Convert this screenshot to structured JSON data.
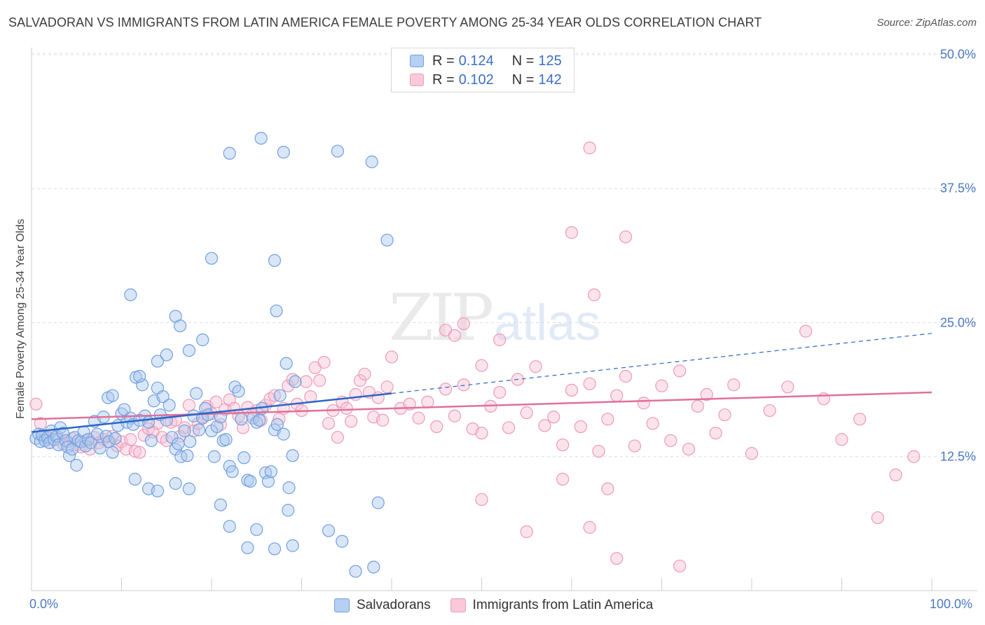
{
  "chart_data": {
    "type": "scatter",
    "title": "SALVADORAN VS IMMIGRANTS FROM LATIN AMERICA FEMALE POVERTY AMONG 25-34 YEAR OLDS CORRELATION CHART",
    "source": "Source: ZipAtlas.com",
    "xlabel": "",
    "ylabel": "Female Poverty Among 25-34 Year Olds",
    "xlim": [
      0,
      100
    ],
    "ylim": [
      0,
      50
    ],
    "x_tick_labels": [
      "0.0%",
      "100.0%"
    ],
    "y_ticks": [
      12.5,
      25.0,
      37.5,
      50.0
    ],
    "y_tick_labels": [
      "12.5%",
      "25.0%",
      "37.5%",
      "50.0%"
    ],
    "grid": true,
    "watermark": {
      "zip": "ZIP",
      "atlas": "atlas"
    },
    "legend_stats": [
      {
        "r_label": "R = ",
        "r_value": "0.124",
        "n_label": "N = ",
        "n_value": "125"
      },
      {
        "r_label": "R = ",
        "r_value": "0.102",
        "n_label": "N = ",
        "n_value": "142"
      }
    ],
    "series": [
      {
        "name": "Salvadorans",
        "color": "#6fa0e0",
        "fill": "#aac8ee",
        "trend_color": "#2a66c8",
        "trend": {
          "x": [
            0,
            40
          ],
          "y": [
            14.8,
            18.4
          ]
        },
        "trend_extension": {
          "x": [
            40,
            100
          ],
          "y": [
            18.4,
            24.0
          ]
        },
        "points": [
          [
            0.5,
            14.2
          ],
          [
            0.8,
            14.6
          ],
          [
            1.0,
            13.9
          ],
          [
            1.2,
            14.5
          ],
          [
            1.5,
            14.0
          ],
          [
            1.8,
            14.3
          ],
          [
            2.0,
            13.8
          ],
          [
            2.2,
            14.9
          ],
          [
            2.5,
            14.1
          ],
          [
            2.8,
            14.4
          ],
          [
            3.0,
            13.6
          ],
          [
            3.2,
            15.2
          ],
          [
            3.5,
            14.7
          ],
          [
            3.8,
            14.0
          ],
          [
            4.0,
            13.4
          ],
          [
            4.2,
            12.6
          ],
          [
            4.5,
            13.2
          ],
          [
            4.8,
            14.3
          ],
          [
            5.0,
            11.7
          ],
          [
            5.2,
            14.0
          ],
          [
            5.5,
            13.9
          ],
          [
            5.8,
            14.8
          ],
          [
            6.0,
            13.5
          ],
          [
            6.3,
            14.1
          ],
          [
            6.6,
            13.8
          ],
          [
            7.0,
            15.8
          ],
          [
            7.3,
            14.6
          ],
          [
            7.6,
            13.3
          ],
          [
            8.0,
            16.2
          ],
          [
            8.3,
            14.4
          ],
          [
            8.6,
            13.9
          ],
          [
            9.0,
            12.9
          ],
          [
            9.3,
            14.2
          ],
          [
            9.6,
            15.4
          ],
          [
            10.0,
            16.5
          ],
          [
            10.3,
            16.9
          ],
          [
            10.6,
            15.7
          ],
          [
            11.0,
            16.1
          ],
          [
            11.3,
            15.5
          ],
          [
            11.6,
            19.9
          ],
          [
            12.0,
            15.9
          ],
          [
            12.3,
            19.2
          ],
          [
            12.6,
            16.3
          ],
          [
            13.0,
            15.7
          ],
          [
            13.3,
            14.0
          ],
          [
            13.6,
            17.7
          ],
          [
            14.0,
            18.9
          ],
          [
            14.3,
            16.4
          ],
          [
            14.6,
            18.1
          ],
          [
            15.0,
            15.9
          ],
          [
            15.3,
            17.3
          ],
          [
            15.6,
            14.3
          ],
          [
            16.0,
            13.2
          ],
          [
            16.3,
            13.7
          ],
          [
            16.6,
            12.5
          ],
          [
            17.0,
            14.9
          ],
          [
            17.3,
            12.6
          ],
          [
            17.6,
            13.9
          ],
          [
            18.0,
            16.3
          ],
          [
            18.3,
            18.4
          ],
          [
            18.6,
            15.0
          ],
          [
            19.0,
            16.1
          ],
          [
            19.3,
            17.0
          ],
          [
            19.6,
            16.4
          ],
          [
            20.0,
            14.9
          ],
          [
            20.3,
            12.5
          ],
          [
            20.6,
            15.3
          ],
          [
            21.0,
            16.2
          ],
          [
            21.3,
            14.0
          ],
          [
            21.6,
            14.1
          ],
          [
            22.0,
            11.6
          ],
          [
            22.3,
            11.1
          ],
          [
            22.6,
            19.0
          ],
          [
            23.0,
            18.6
          ],
          [
            23.3,
            16.0
          ],
          [
            23.6,
            12.4
          ],
          [
            24.0,
            10.3
          ],
          [
            24.3,
            10.2
          ],
          [
            24.6,
            16.1
          ],
          [
            25.0,
            15.7
          ],
          [
            25.3,
            15.9
          ],
          [
            25.6,
            17.0
          ],
          [
            26.0,
            11.0
          ],
          [
            26.3,
            10.2
          ],
          [
            26.6,
            11.1
          ],
          [
            27.0,
            15.0
          ],
          [
            27.3,
            15.5
          ],
          [
            27.6,
            18.2
          ],
          [
            28.0,
            14.6
          ],
          [
            28.3,
            21.2
          ],
          [
            28.6,
            9.6
          ],
          [
            29.0,
            12.6
          ],
          [
            29.3,
            19.5
          ],
          [
            12.0,
            20.0
          ],
          [
            14.0,
            21.4
          ],
          [
            15.0,
            22.0
          ],
          [
            16.0,
            25.6
          ],
          [
            16.5,
            24.7
          ],
          [
            17.5,
            22.4
          ],
          [
            19.0,
            23.4
          ],
          [
            8.5,
            18.0
          ],
          [
            9.0,
            18.2
          ],
          [
            11.0,
            27.6
          ],
          [
            20.0,
            31.0
          ],
          [
            22.0,
            40.8
          ],
          [
            27.0,
            30.8
          ],
          [
            27.2,
            26.1
          ],
          [
            28.0,
            40.9
          ],
          [
            25.5,
            42.2
          ],
          [
            34.0,
            41.0
          ],
          [
            37.8,
            40.0
          ],
          [
            39.5,
            32.7
          ],
          [
            11.5,
            10.4
          ],
          [
            13.0,
            9.5
          ],
          [
            14.0,
            9.3
          ],
          [
            16.0,
            10.0
          ],
          [
            17.5,
            9.5
          ],
          [
            21.0,
            8.0
          ],
          [
            22.0,
            6.0
          ],
          [
            24.0,
            4.0
          ],
          [
            25.0,
            5.7
          ],
          [
            27.0,
            3.9
          ],
          [
            28.5,
            7.5
          ],
          [
            29.0,
            4.2
          ],
          [
            33.0,
            5.6
          ],
          [
            34.5,
            4.6
          ],
          [
            36.0,
            1.8
          ],
          [
            38.0,
            2.2
          ],
          [
            38.5,
            8.2
          ]
        ]
      },
      {
        "name": "Immigrants from Latin America",
        "color": "#ee9ab8",
        "fill": "#f7c2d4",
        "trend_color": "#e0709a",
        "trend": {
          "x": [
            0,
            100
          ],
          "y": [
            16.0,
            18.5
          ]
        },
        "points": [
          [
            0.5,
            17.4
          ],
          [
            1.0,
            15.6
          ],
          [
            1.5,
            14.3
          ],
          [
            2.0,
            13.8
          ],
          [
            2.5,
            14.5
          ],
          [
            3.0,
            14.1
          ],
          [
            3.5,
            13.7
          ],
          [
            4.0,
            13.9
          ],
          [
            4.5,
            14.2
          ],
          [
            5.0,
            13.6
          ],
          [
            5.5,
            13.4
          ],
          [
            6.0,
            14.0
          ],
          [
            6.5,
            13.2
          ],
          [
            7.0,
            14.3
          ],
          [
            7.5,
            13.8
          ],
          [
            8.0,
            14.1
          ],
          [
            8.5,
            13.9
          ],
          [
            9.0,
            14.4
          ],
          [
            9.5,
            13.5
          ],
          [
            10.0,
            13.9
          ],
          [
            10.5,
            13.2
          ],
          [
            11.0,
            14.1
          ],
          [
            11.5,
            13.0
          ],
          [
            12.0,
            12.9
          ],
          [
            12.5,
            14.5
          ],
          [
            13.0,
            15.1
          ],
          [
            13.5,
            14.8
          ],
          [
            14.0,
            15.6
          ],
          [
            14.5,
            14.3
          ],
          [
            15.0,
            14.0
          ],
          [
            15.5,
            15.7
          ],
          [
            16.0,
            15.9
          ],
          [
            16.5,
            14.4
          ],
          [
            17.0,
            15.2
          ],
          [
            17.5,
            17.3
          ],
          [
            18.0,
            14.9
          ],
          [
            18.5,
            15.6
          ],
          [
            19.0,
            16.2
          ],
          [
            19.5,
            17.2
          ],
          [
            20.0,
            16.5
          ],
          [
            20.5,
            17.6
          ],
          [
            21.0,
            15.5
          ],
          [
            21.5,
            16.9
          ],
          [
            22.0,
            17.8
          ],
          [
            22.5,
            17.0
          ],
          [
            23.0,
            16.3
          ],
          [
            23.5,
            15.2
          ],
          [
            24.0,
            17.1
          ],
          [
            24.5,
            16.4
          ],
          [
            25.0,
            16.8
          ],
          [
            25.5,
            15.9
          ],
          [
            26.0,
            17.3
          ],
          [
            26.5,
            17.9
          ],
          [
            27.0,
            18.2
          ],
          [
            27.5,
            16.0
          ],
          [
            28.0,
            17.0
          ],
          [
            28.5,
            19.1
          ],
          [
            29.0,
            19.7
          ],
          [
            29.5,
            17.4
          ],
          [
            30.0,
            16.8
          ],
          [
            30.5,
            19.5
          ],
          [
            31.0,
            18.1
          ],
          [
            31.5,
            20.8
          ],
          [
            32.0,
            19.6
          ],
          [
            32.5,
            21.3
          ],
          [
            33.0,
            15.6
          ],
          [
            33.5,
            16.8
          ],
          [
            34.0,
            14.3
          ],
          [
            34.5,
            17.6
          ],
          [
            35.0,
            17.0
          ],
          [
            35.5,
            15.8
          ],
          [
            36.0,
            18.3
          ],
          [
            36.5,
            19.6
          ],
          [
            37.0,
            20.2
          ],
          [
            37.5,
            18.5
          ],
          [
            38.0,
            16.2
          ],
          [
            38.5,
            18.0
          ],
          [
            39.0,
            15.9
          ],
          [
            39.5,
            19.0
          ],
          [
            40.0,
            21.8
          ],
          [
            41.0,
            17.0
          ],
          [
            42.0,
            17.4
          ],
          [
            43.0,
            16.1
          ],
          [
            44.0,
            17.6
          ],
          [
            45.0,
            15.3
          ],
          [
            46.0,
            18.8
          ],
          [
            47.0,
            16.3
          ],
          [
            48.0,
            19.2
          ],
          [
            49.0,
            15.1
          ],
          [
            50.0,
            14.7
          ],
          [
            51.0,
            17.2
          ],
          [
            52.0,
            18.5
          ],
          [
            53.0,
            15.2
          ],
          [
            54.0,
            19.7
          ],
          [
            55.0,
            16.6
          ],
          [
            56.0,
            20.9
          ],
          [
            57.0,
            15.4
          ],
          [
            58.0,
            16.2
          ],
          [
            59.0,
            13.6
          ],
          [
            60.0,
            18.7
          ],
          [
            61.0,
            15.3
          ],
          [
            62.0,
            19.3
          ],
          [
            63.0,
            13.0
          ],
          [
            64.0,
            16.0
          ],
          [
            65.0,
            18.2
          ],
          [
            66.0,
            20.0
          ],
          [
            67.0,
            13.5
          ],
          [
            68.0,
            17.5
          ],
          [
            69.0,
            15.6
          ],
          [
            70.0,
            19.1
          ],
          [
            71.0,
            14.0
          ],
          [
            72.0,
            20.5
          ],
          [
            73.0,
            13.2
          ],
          [
            74.0,
            17.2
          ],
          [
            75.0,
            18.3
          ],
          [
            76.0,
            14.7
          ],
          [
            77.0,
            16.4
          ],
          [
            78.0,
            19.2
          ],
          [
            80.0,
            12.8
          ],
          [
            82.0,
            16.8
          ],
          [
            84.0,
            19.0
          ],
          [
            86.0,
            24.2
          ],
          [
            88.0,
            17.9
          ],
          [
            90.0,
            14.1
          ],
          [
            92.0,
            16.0
          ],
          [
            94.0,
            6.8
          ],
          [
            96.0,
            10.8
          ],
          [
            98.0,
            12.5
          ],
          [
            60.0,
            33.4
          ],
          [
            62.0,
            41.3
          ],
          [
            62.5,
            27.6
          ],
          [
            66.0,
            33.0
          ],
          [
            48.0,
            24.9
          ],
          [
            46.0,
            24.3
          ],
          [
            50.0,
            21.0
          ],
          [
            52.0,
            23.4
          ],
          [
            47.0,
            23.8
          ],
          [
            59.0,
            10.4
          ],
          [
            64.0,
            9.5
          ],
          [
            62.0,
            5.9
          ],
          [
            55.0,
            5.5
          ],
          [
            65.0,
            3.0
          ],
          [
            72.0,
            2.3
          ],
          [
            50.0,
            8.5
          ]
        ]
      }
    ]
  }
}
